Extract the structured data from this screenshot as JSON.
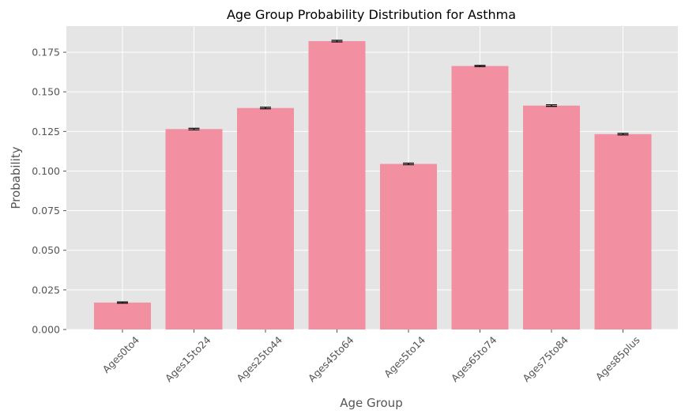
{
  "chart_data": {
    "type": "bar",
    "title": "Age Group Probability Distribution for Asthma",
    "xlabel": "Age Group",
    "ylabel": "Probability",
    "categories": [
      "Ages0to4",
      "Ages15to24",
      "Ages25to44",
      "Ages45to64",
      "Ages5to14",
      "Ages65to74",
      "Ages75to84",
      "Ages85plus"
    ],
    "values": [
      0.017,
      0.1265,
      0.1398,
      0.182,
      0.1045,
      0.1663,
      0.1413,
      0.1233
    ],
    "errors": [
      0.0004,
      0.0005,
      0.0005,
      0.0005,
      0.0005,
      0.0004,
      0.0005,
      0.0005
    ],
    "ylim": [
      0,
      0.1915
    ],
    "yticks": [
      0.0,
      0.025,
      0.05,
      0.075,
      0.1,
      0.125,
      0.15,
      0.175
    ],
    "ytick_labels": [
      "0.000",
      "0.025",
      "0.050",
      "0.075",
      "0.100",
      "0.125",
      "0.150",
      "0.175"
    ],
    "grid": true,
    "colors": {
      "bar": "#f28fa1",
      "background": "#e5e5e5",
      "grid": "#ffffff",
      "error": "#000000"
    }
  }
}
